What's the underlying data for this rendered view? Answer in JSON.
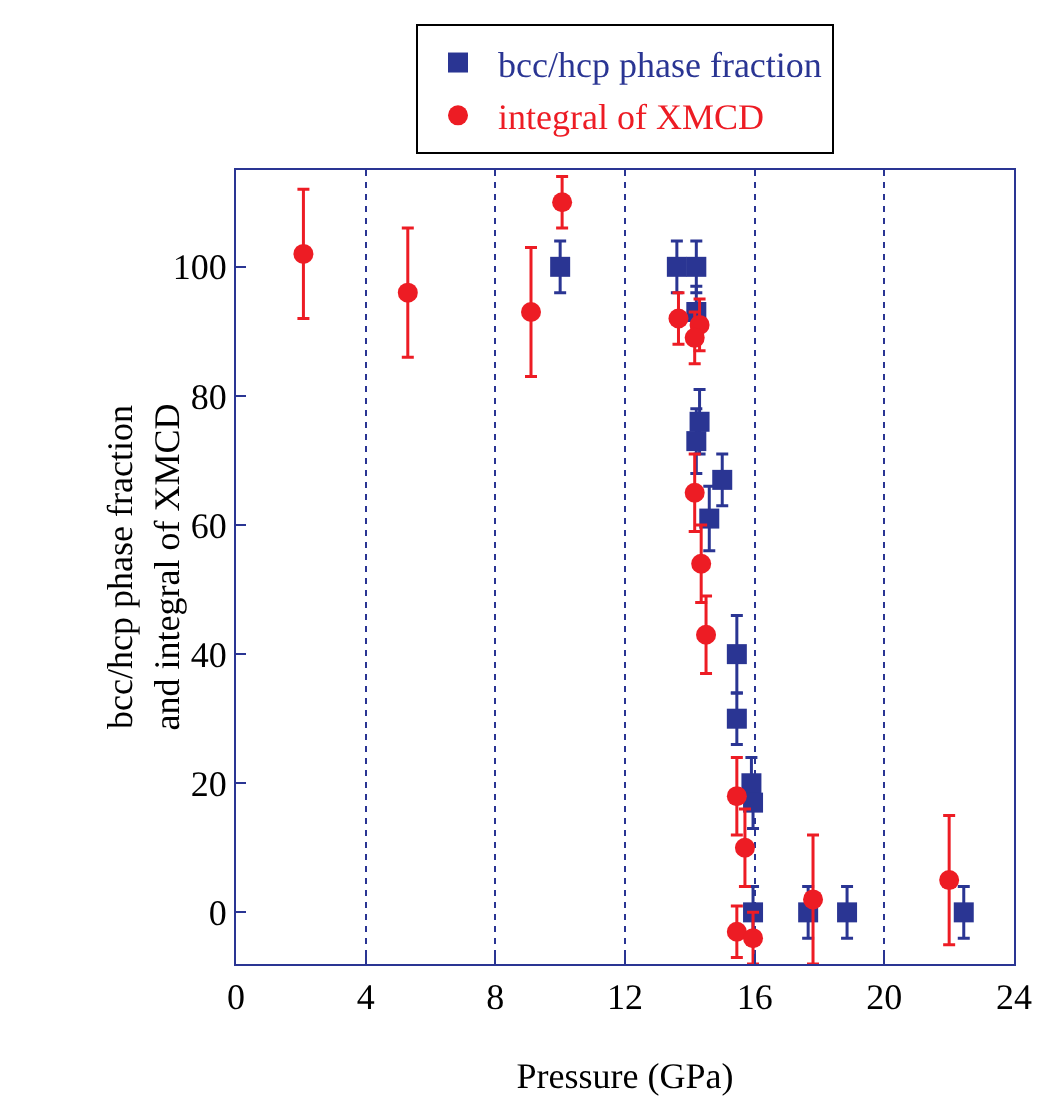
{
  "chart_data": {
    "type": "scatter",
    "xlabel": "Pressure (GPa)",
    "ylabel": "bcc/hcp phase fraction\nand integral of XMCD",
    "xlim": [
      0,
      24
    ],
    "xticks": [
      0,
      4,
      8,
      12,
      16,
      20,
      24
    ],
    "ylim": [
      -8,
      115
    ],
    "yticks": [
      0,
      20,
      40,
      60,
      80,
      100
    ],
    "grid": "x",
    "legend": "top",
    "series": [
      {
        "name": "bcc/hcp phase fraction",
        "color": "#2a3593",
        "marker": "square",
        "x": [
          10,
          13.6,
          14.2,
          14.2,
          14.3,
          14.2,
          15.0,
          14.6,
          15.45,
          15.45,
          15.9,
          15.95,
          15.95,
          17.65,
          18.85,
          22.45
        ],
        "values": [
          100,
          100,
          100,
          93,
          76,
          73,
          67,
          61,
          40,
          30,
          20,
          17,
          0,
          0,
          0,
          0
        ],
        "errors": [
          4,
          4,
          4,
          4,
          5,
          5,
          4,
          5,
          6,
          4,
          4,
          4,
          4,
          4,
          4,
          4
        ]
      },
      {
        "name": "integral of XMCD",
        "color": "#ed1c24",
        "marker": "circle",
        "x": [
          2.08,
          5.3,
          9.1,
          10.06,
          13.65,
          14.3,
          14.15,
          14.15,
          14.35,
          14.5,
          15.45,
          15.7,
          15.45,
          15.95,
          17.8,
          22.0
        ],
        "values": [
          102,
          96,
          93,
          110,
          92,
          91,
          89,
          65,
          54,
          43,
          18,
          10,
          -3,
          -4,
          2,
          5
        ],
        "errors": [
          10,
          10,
          10,
          4,
          4,
          4,
          4,
          6,
          6,
          6,
          6,
          6,
          4,
          4,
          10,
          10
        ]
      }
    ]
  }
}
